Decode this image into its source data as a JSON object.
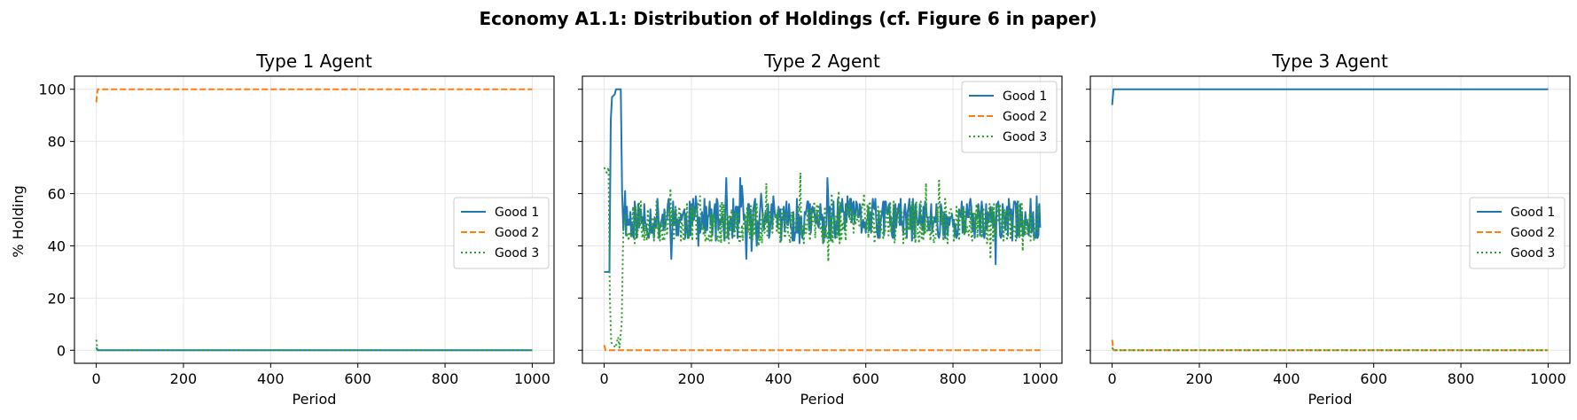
{
  "suptitle": "Economy A1.1: Distribution of Holdings (cf. Figure 6 in paper)",
  "ylabel": "% Holding",
  "colors": {
    "good1": "#1f77b4",
    "good2": "#ff7f0e",
    "good3": "#2ca02c",
    "grid": "#e6e6e6"
  },
  "chart_data": [
    {
      "type": "line",
      "title": "Type 1 Agent",
      "xlabel": "Period",
      "ylabel": "% Holding",
      "xlim": [
        -50,
        1050
      ],
      "ylim": [
        -5,
        105
      ],
      "xticks": [
        0,
        200,
        400,
        600,
        800,
        1000
      ],
      "yticks": [
        0,
        20,
        40,
        60,
        80,
        100
      ],
      "grid": true,
      "legend_position": "center-right",
      "series": [
        {
          "name": "Good 1",
          "style": "solid",
          "pattern": "flat",
          "level": 0,
          "start": 1,
          "noise": 0
        },
        {
          "name": "Good 2",
          "style": "dashed",
          "pattern": "flat",
          "level": 100,
          "start": 95,
          "noise": 0
        },
        {
          "name": "Good 3",
          "style": "dotted",
          "pattern": "flat",
          "level": 0,
          "start": 4,
          "noise": 0
        }
      ]
    },
    {
      "type": "line",
      "title": "Type 2 Agent",
      "xlabel": "Period",
      "xlim": [
        -50,
        1050
      ],
      "ylim": [
        -5,
        105
      ],
      "xticks": [
        0,
        200,
        400,
        600,
        800,
        1000
      ],
      "yticks": [
        0,
        20,
        40,
        60,
        80,
        100
      ],
      "grid": true,
      "legend_position": "upper-right",
      "series": [
        {
          "name": "Good 1",
          "style": "solid",
          "pattern": "rise-then-oscillate",
          "initial": 30,
          "peak": 100,
          "mean": 50,
          "range": [
            31,
            66
          ],
          "noise": 8,
          "seed": 11
        },
        {
          "name": "Good 2",
          "style": "dashed",
          "pattern": "flat",
          "level": 0,
          "start": 2,
          "noise": 0
        },
        {
          "name": "Good 3",
          "style": "dotted",
          "pattern": "drop-then-oscillate",
          "initial": 70,
          "low": 1,
          "mean": 49,
          "range": [
            34,
            69
          ],
          "noise": 8,
          "seed": 23
        }
      ]
    },
    {
      "type": "line",
      "title": "Type 3 Agent",
      "xlabel": "Period",
      "xlim": [
        -50,
        1050
      ],
      "ylim": [
        -5,
        105
      ],
      "xticks": [
        0,
        200,
        400,
        600,
        800,
        1000
      ],
      "yticks": [
        0,
        20,
        40,
        60,
        80,
        100
      ],
      "grid": true,
      "legend_position": "center-right",
      "series": [
        {
          "name": "Good 1",
          "style": "solid",
          "pattern": "flat",
          "level": 100,
          "start": 94,
          "noise": 0
        },
        {
          "name": "Good 2",
          "style": "dashed",
          "pattern": "flat",
          "level": 0,
          "start": 4,
          "noise": 0
        },
        {
          "name": "Good 3",
          "style": "dotted",
          "pattern": "flat",
          "level": 0,
          "start": 1,
          "noise": 0
        }
      ]
    }
  ]
}
